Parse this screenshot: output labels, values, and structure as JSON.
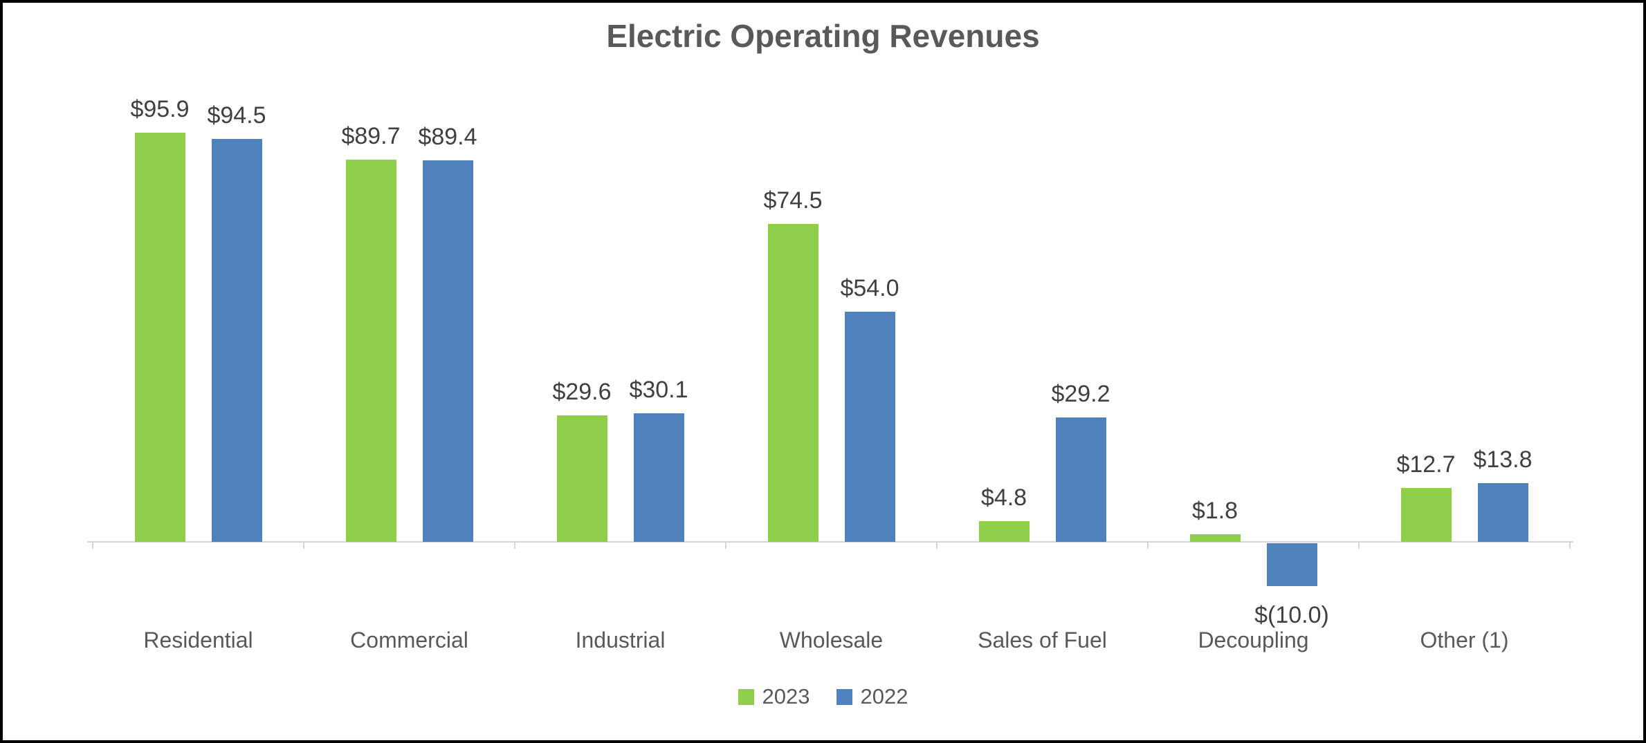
{
  "chart_data": {
    "type": "bar",
    "title": "Electric Operating Revenues",
    "categories": [
      "Residential",
      "Commercial",
      "Industrial",
      "Wholesale",
      "Sales of Fuel",
      "Decoupling",
      "Other (1)"
    ],
    "series": [
      {
        "name": "2023",
        "color": "#8FCE4B",
        "values": [
          95.9,
          89.7,
          29.6,
          74.5,
          4.8,
          1.8,
          12.7
        ],
        "labels": [
          "$95.9",
          "$89.7",
          "$29.6",
          "$74.5",
          "$4.8",
          "$1.8",
          "$12.7"
        ]
      },
      {
        "name": "2022",
        "color": "#4F81BD",
        "values": [
          94.5,
          89.4,
          30.1,
          54.0,
          29.2,
          -10.0,
          13.8
        ],
        "labels": [
          "$94.5",
          "$89.4",
          "$30.1",
          "$54.0",
          "$29.2",
          "$(10.0)",
          "$13.8"
        ]
      }
    ],
    "legend_entries": [
      "2023",
      "2022"
    ],
    "legend_position": "bottom",
    "grid": false,
    "y_axis_visible": false,
    "x_axis_color": "#D6D6D6",
    "text_colors": {
      "title": "#595959",
      "data_label": "#404040",
      "category": "#595959",
      "legend": "#595959"
    }
  }
}
